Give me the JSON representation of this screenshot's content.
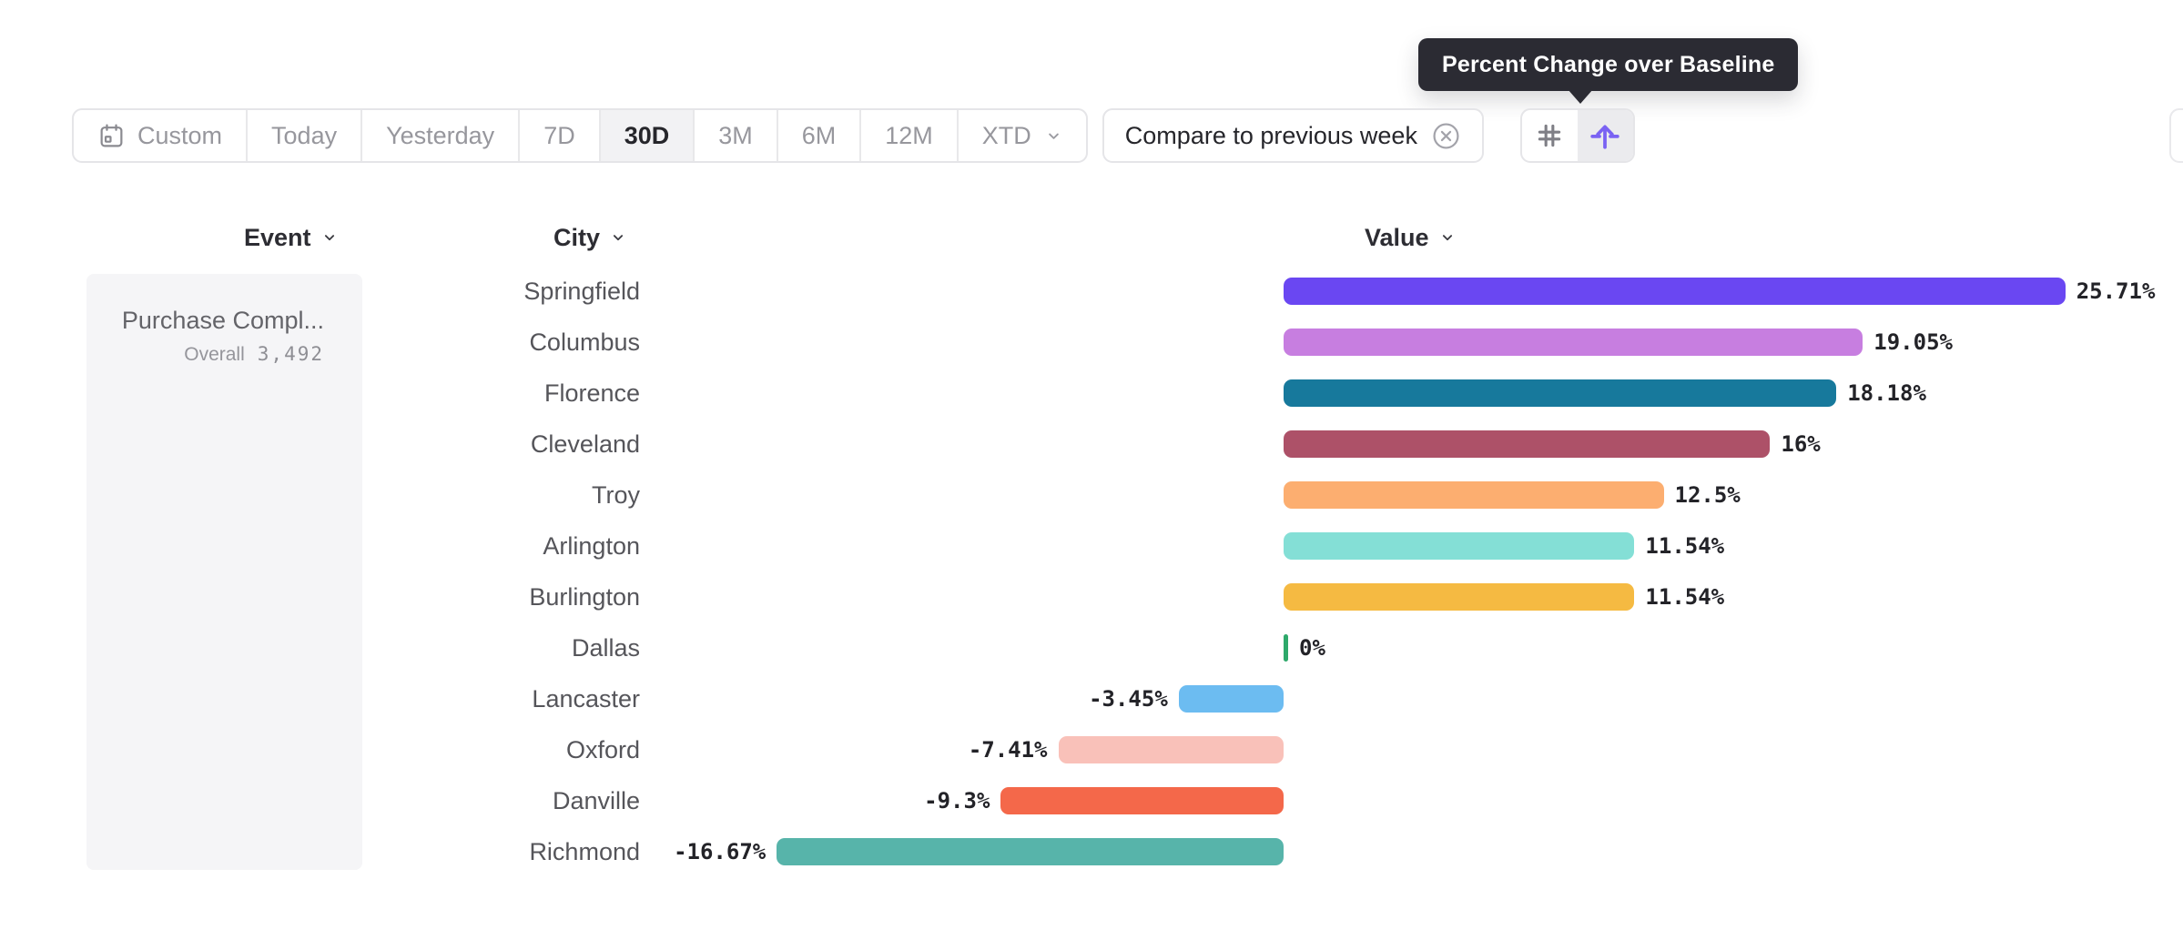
{
  "tooltip": {
    "text": "Percent Change over Baseline"
  },
  "toolbar": {
    "date_ranges": [
      {
        "label": "Custom",
        "icon": "calendar-icon",
        "selected": false
      },
      {
        "label": "Today",
        "selected": false
      },
      {
        "label": "Yesterday",
        "selected": false
      },
      {
        "label": "7D",
        "selected": false
      },
      {
        "label": "30D",
        "selected": true
      },
      {
        "label": "3M",
        "selected": false
      },
      {
        "label": "6M",
        "selected": false
      },
      {
        "label": "12M",
        "selected": false
      },
      {
        "label": "XTD",
        "icon": "chevron-down-icon",
        "selected": false
      }
    ],
    "compare": {
      "label": "Compare to previous week",
      "icon": "close-circle-icon"
    },
    "view_modes": [
      {
        "icon": "number-grid-icon",
        "selected": false
      },
      {
        "icon": "percent-change-icon",
        "selected": true,
        "tooltip": "Percent Change over Baseline"
      }
    ]
  },
  "columns": {
    "event": "Event",
    "city": "City",
    "value": "Value"
  },
  "event_panel": {
    "event_name": "Purchase Compl...",
    "metric_label": "Overall",
    "metric_value": "3,492"
  },
  "chart_data": {
    "type": "bar",
    "orientation": "horizontal",
    "title": "Percent Change over Baseline",
    "value_suffix": "%",
    "baseline": 0,
    "categories": [
      "Springfield",
      "Columbus",
      "Florence",
      "Cleveland",
      "Troy",
      "Arlington",
      "Burlington",
      "Dallas",
      "Lancaster",
      "Oxford",
      "Danville",
      "Richmond"
    ],
    "values": [
      25.71,
      19.05,
      18.18,
      16,
      12.5,
      11.54,
      11.54,
      0,
      -3.45,
      -7.41,
      -9.3,
      -16.67
    ],
    "labels": [
      "25.71%",
      "19.05%",
      "18.18%",
      "16%",
      "12.5%",
      "11.54%",
      "11.54%",
      "0%",
      "-3.45%",
      "-7.41%",
      "-9.3%",
      "-16.67%"
    ],
    "colors": [
      "#6a47f2",
      "#c77ee0",
      "#17799c",
      "#ad5168",
      "#fcae70",
      "#84dfd6",
      "#f5ba42",
      "#2ea96b",
      "#6cbcf1",
      "#f9c1b9",
      "#f4684a",
      "#57b4aa"
    ]
  }
}
